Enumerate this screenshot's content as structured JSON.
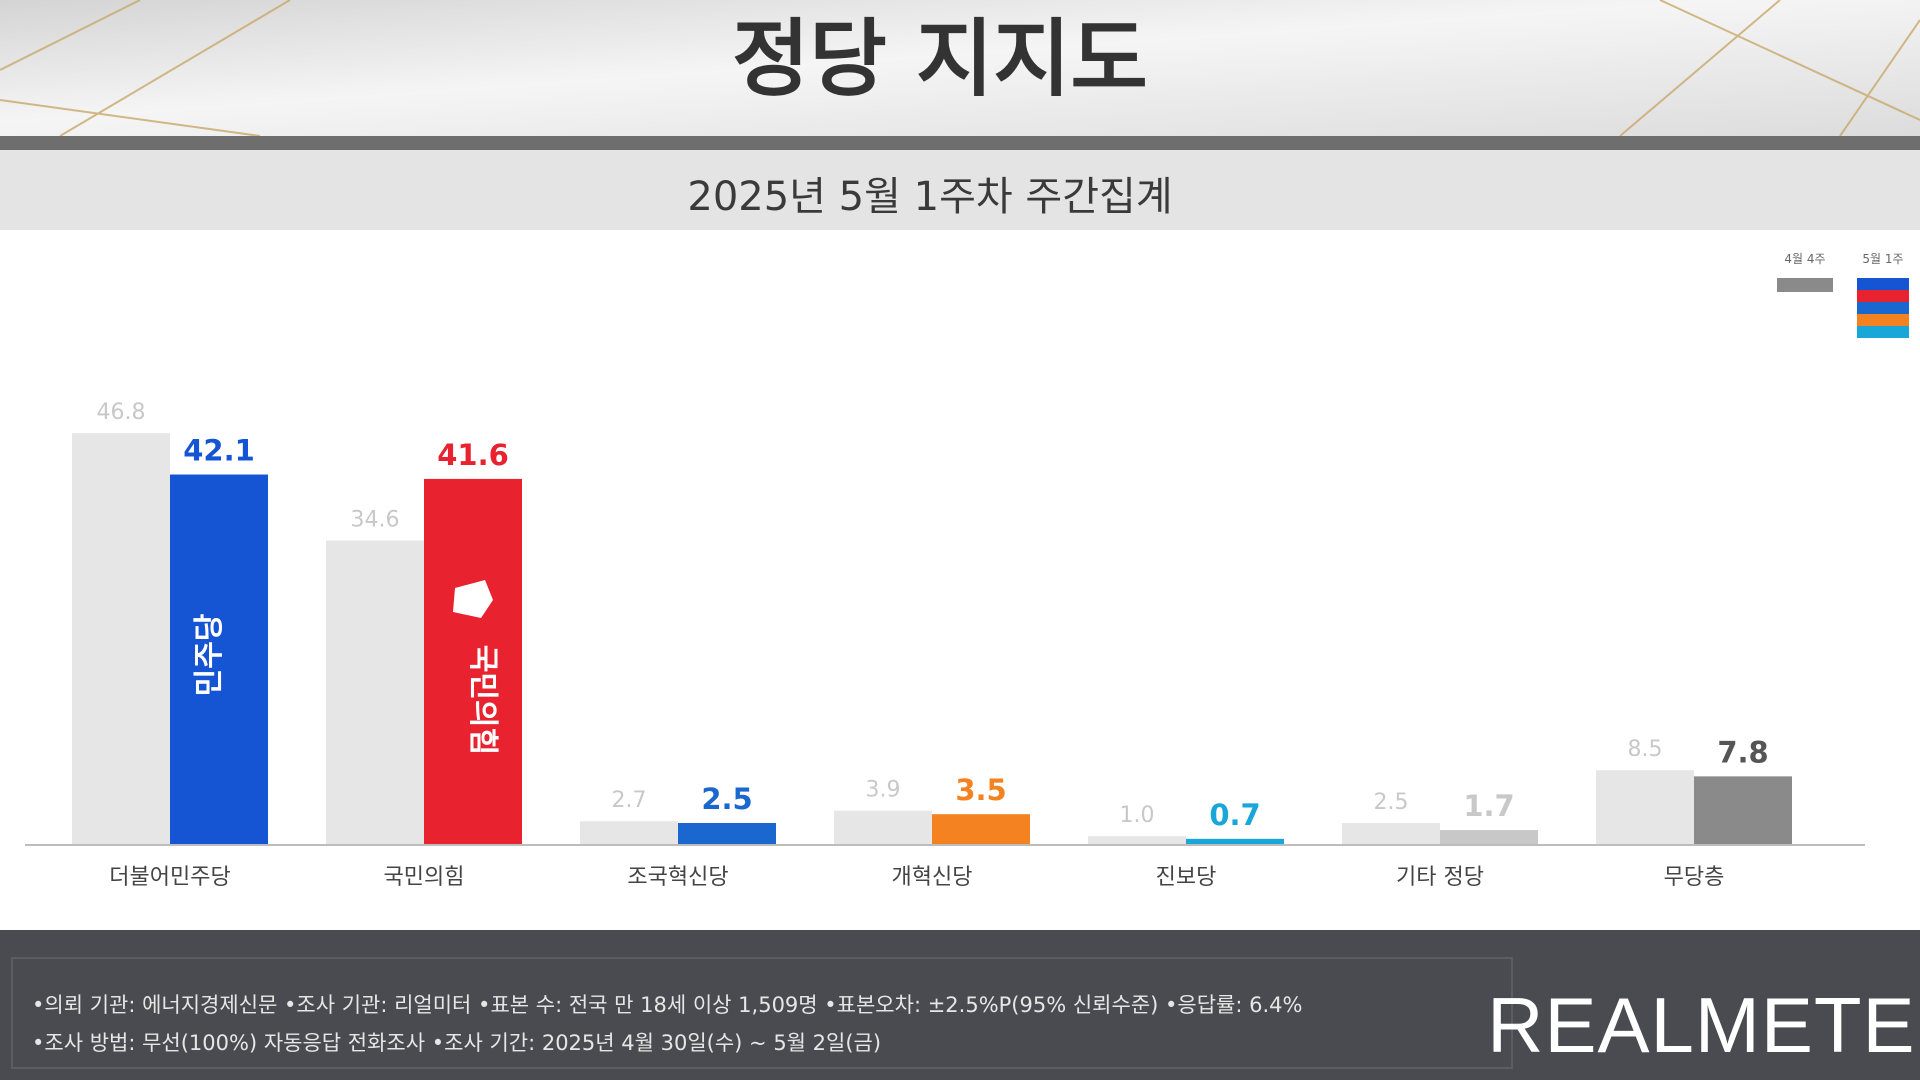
{
  "header": {
    "title": "정당 지지도",
    "subtitle": "2025년 5월 1주차 주간집계"
  },
  "legend": {
    "previous_label": "4월 4주",
    "current_label": "5월 1주"
  },
  "logos": {
    "democratic": "민주당",
    "ppp": "국민의힘"
  },
  "colors": {
    "previous_bar": "#e6e6e6",
    "democratic": "#1554d3",
    "ppp": "#e8222e",
    "rebuilding": "#1a67d0",
    "reform": "#f58220",
    "progressive": "#19a6d9",
    "other": "#c8c8c8",
    "none": "#8a8a8a",
    "footer_bg": "#4a4b50"
  },
  "chart_data": {
    "type": "bar",
    "categories": [
      "더불어민주당",
      "국민의힘",
      "조국혁신당",
      "개혁신당",
      "진보당",
      "기타 정당",
      "무당층"
    ],
    "series": [
      {
        "name": "4월 4주",
        "values": [
          46.8,
          34.6,
          2.7,
          3.9,
          1.0,
          2.5,
          8.5
        ]
      },
      {
        "name": "5월 1주",
        "values": [
          42.1,
          41.6,
          2.5,
          3.5,
          0.7,
          1.7,
          7.8
        ]
      }
    ],
    "value_labels_previous": [
      "46.8",
      "34.6",
      "2.7",
      "3.9",
      "1.0",
      "2.5",
      "8.5"
    ],
    "value_labels_current": [
      "42.1",
      "41.6",
      "2.5",
      "3.5",
      "0.7",
      "1.7",
      "7.8"
    ],
    "title": "정당 지지도",
    "subtitle": "2025년 5월 1주차 주간집계",
    "ylim": [
      0,
      50
    ],
    "grid": false,
    "legend_position": "top-right"
  },
  "footer": {
    "line1": "•의뢰 기관: 에너지경제신문   •조사 기관: 리얼미터 •표본 수: 전국 만 18세 이상 1,509명 •표본오차: ±2.5%P(95% 신뢰수준) •응답률: 6.4%",
    "line2": "•조사 방법: 무선(100%) 자동응답 전화조사 •조사 기간: 2025년 4월 30일(수) ~ 5월 2일(금)",
    "brand": "REALMETER"
  }
}
